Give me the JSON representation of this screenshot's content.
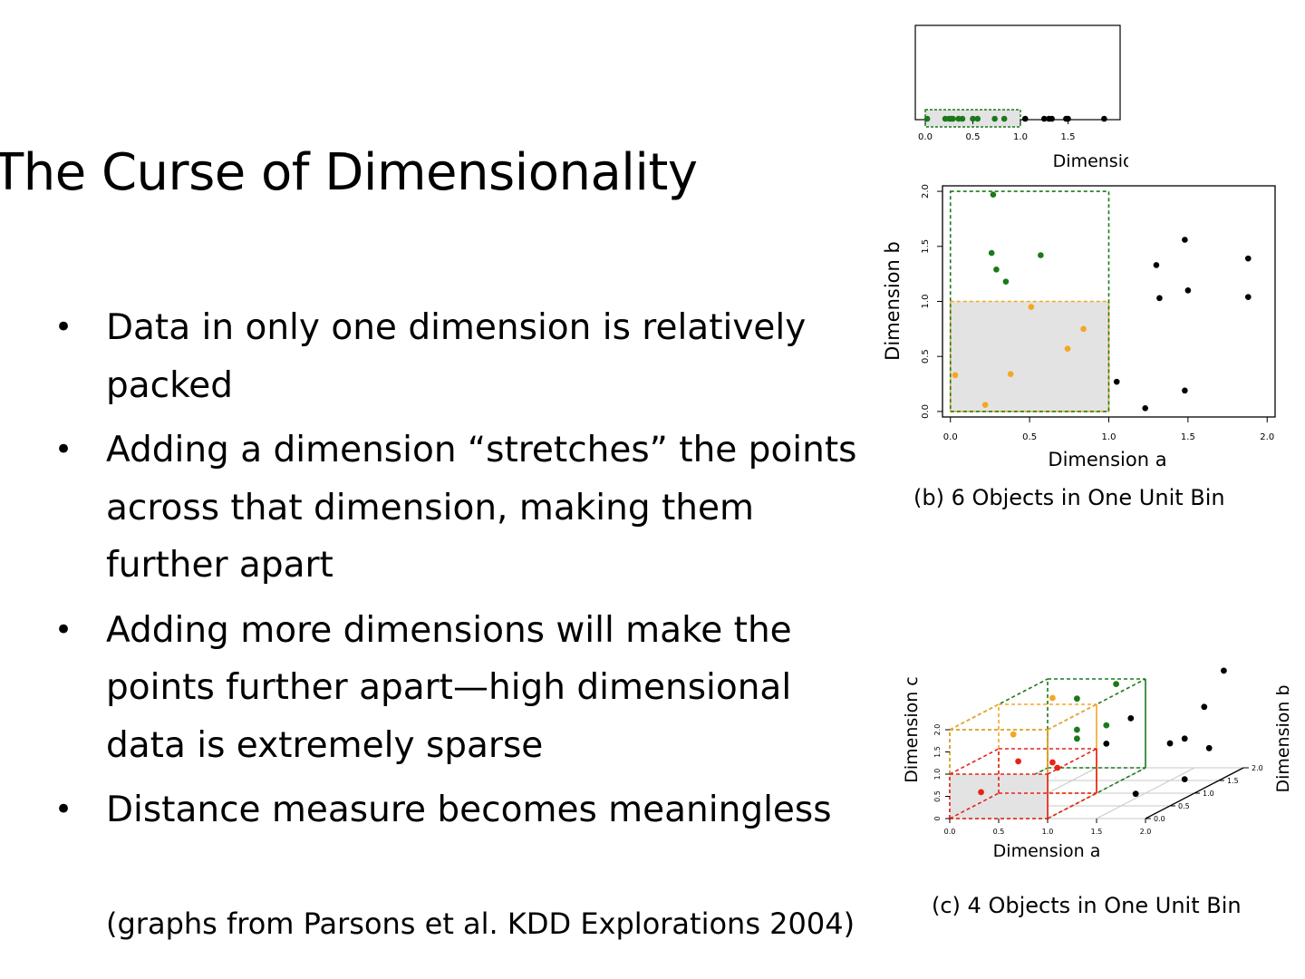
{
  "slide": {
    "title": "The Curse of Dimensionality",
    "bullets": [
      "Data in only one dimension is relatively packed",
      "Adding a dimension “stretches” the  points across that dimension, making them further apart",
      "Adding more dimensions will make the points further apart—high dimensional data is extremely sparse",
      "Distance measure becomes meaningless"
    ],
    "citation": "(graphs from Parsons et al. KDD Explorations 2004)"
  },
  "colors": {
    "in_bin_1d": "#1a7a1a",
    "in_bin_2d": "#f5a623",
    "in_bin_3d": "#e8221b",
    "outside": "#000000",
    "bin_fill": "#e3e3e3"
  },
  "chart_data": [
    {
      "type": "scatter",
      "title": "",
      "xlabel": "Dimension a",
      "xlim": [
        0.0,
        2.0
      ],
      "xticks": [
        "0.0",
        "0.5",
        "1.0",
        "1.5"
      ],
      "bin": {
        "x": [
          0.0,
          1.0
        ],
        "color": "green"
      },
      "points": [
        {
          "x": 0.02,
          "color": "green"
        },
        {
          "x": 0.21,
          "color": "green"
        },
        {
          "x": 0.25,
          "color": "green"
        },
        {
          "x": 0.27,
          "color": "green"
        },
        {
          "x": 0.29,
          "color": "green"
        },
        {
          "x": 0.35,
          "color": "green"
        },
        {
          "x": 0.39,
          "color": "green"
        },
        {
          "x": 0.5,
          "color": "green"
        },
        {
          "x": 0.55,
          "color": "green"
        },
        {
          "x": 0.73,
          "color": "green"
        },
        {
          "x": 0.83,
          "color": "green"
        },
        {
          "x": 1.05,
          "color": "black"
        },
        {
          "x": 1.25,
          "color": "black"
        },
        {
          "x": 1.3,
          "color": "black"
        },
        {
          "x": 1.33,
          "color": "black"
        },
        {
          "x": 1.48,
          "color": "black"
        },
        {
          "x": 1.5,
          "color": "black"
        },
        {
          "x": 1.88,
          "color": "black"
        }
      ]
    },
    {
      "type": "scatter",
      "title": "",
      "caption": "(b) 6 Objects in One Unit Bin",
      "xlabel": "Dimension a",
      "ylabel": "Dimension b",
      "xlim": [
        -0.05,
        2.05
      ],
      "ylim": [
        -0.05,
        2.05
      ],
      "xticks": [
        "0.0",
        "0.5",
        "1.0",
        "1.5",
        "2.0"
      ],
      "yticks": [
        "0.0",
        "0.5",
        "1.0",
        "1.5",
        "2.0"
      ],
      "bins": [
        {
          "x": [
            0.0,
            1.0
          ],
          "y": [
            0.0,
            2.0
          ],
          "color": "green"
        },
        {
          "x": [
            0.0,
            1.0
          ],
          "y": [
            0.0,
            1.0
          ],
          "color": "orange",
          "filled": true
        }
      ],
      "points": [
        {
          "x": 0.27,
          "y": 1.97,
          "color": "green"
        },
        {
          "x": 0.26,
          "y": 1.44,
          "color": "green"
        },
        {
          "x": 0.29,
          "y": 1.29,
          "color": "green"
        },
        {
          "x": 0.35,
          "y": 1.18,
          "color": "green"
        },
        {
          "x": 0.57,
          "y": 1.42,
          "color": "green"
        },
        {
          "x": 0.03,
          "y": 0.33,
          "color": "orange"
        },
        {
          "x": 0.22,
          "y": 0.06,
          "color": "orange"
        },
        {
          "x": 0.38,
          "y": 0.34,
          "color": "orange"
        },
        {
          "x": 0.51,
          "y": 0.95,
          "color": "orange"
        },
        {
          "x": 0.74,
          "y": 0.57,
          "color": "orange"
        },
        {
          "x": 0.84,
          "y": 0.75,
          "color": "orange"
        },
        {
          "x": 1.05,
          "y": 0.27,
          "color": "black"
        },
        {
          "x": 1.23,
          "y": 0.03,
          "color": "black"
        },
        {
          "x": 1.3,
          "y": 1.33,
          "color": "black"
        },
        {
          "x": 1.32,
          "y": 1.03,
          "color": "black"
        },
        {
          "x": 1.48,
          "y": 1.56,
          "color": "black"
        },
        {
          "x": 1.5,
          "y": 1.1,
          "color": "black"
        },
        {
          "x": 1.48,
          "y": 0.19,
          "color": "black"
        },
        {
          "x": 1.88,
          "y": 1.39,
          "color": "black"
        },
        {
          "x": 1.88,
          "y": 1.04,
          "color": "black"
        }
      ]
    },
    {
      "type": "scatter",
      "title": "",
      "caption": "(c) 4 Objects in One Unit Bin",
      "xlabel": "Dimension a",
      "ylabel": "Dimension c",
      "zlabel": "Dimension b",
      "xticks": [
        "0.0",
        "0.5",
        "1.0",
        "1.5",
        "2.0"
      ],
      "yticks": [
        "0",
        "0.5",
        "1.0",
        "1.5",
        "2.0"
      ],
      "zticks": [
        "0.0",
        "0.5",
        "1.0",
        "1.5",
        "2.0"
      ],
      "bins": [
        {
          "a": [
            0,
            1
          ],
          "b": [
            0,
            2
          ],
          "c": [
            0,
            2
          ],
          "color": "green"
        },
        {
          "a": [
            0,
            1
          ],
          "b": [
            0,
            1
          ],
          "c": [
            0,
            2
          ],
          "color": "orange"
        },
        {
          "a": [
            0,
            1
          ],
          "b": [
            0,
            1
          ],
          "c": [
            0,
            1
          ],
          "color": "red",
          "filled": true
        }
      ],
      "points": [
        {
          "a": 0.22,
          "b": 0.2,
          "c": 0.48,
          "color": "red"
        },
        {
          "a": 0.5,
          "b": 0.4,
          "c": 1.06,
          "color": "red"
        },
        {
          "a": 0.8,
          "b": 0.6,
          "c": 0.8,
          "color": "red"
        },
        {
          "a": 0.6,
          "b": 0.9,
          "c": 0.75,
          "color": "red"
        },
        {
          "a": 0.2,
          "b": 0.9,
          "c": 1.38,
          "color": "orange"
        },
        {
          "a": 0.6,
          "b": 0.9,
          "c": 2.2,
          "color": "orange"
        },
        {
          "a": 0.6,
          "b": 1.4,
          "c": 1.9,
          "color": "green"
        },
        {
          "a": 0.6,
          "b": 1.4,
          "c": 1.2,
          "color": "green"
        },
        {
          "a": 0.6,
          "b": 1.4,
          "c": 1.0,
          "color": "green"
        },
        {
          "a": 0.9,
          "b": 1.4,
          "c": 1.3,
          "color": "green"
        },
        {
          "a": 0.8,
          "b": 1.8,
          "c": 2.0,
          "color": "green"
        },
        {
          "a": 1.1,
          "b": 1.5,
          "c": 1.4,
          "color": "black"
        },
        {
          "a": 1.0,
          "b": 1.2,
          "c": 1.0,
          "color": "black"
        },
        {
          "a": 1.6,
          "b": 1.3,
          "c": 0.95,
          "color": "black"
        },
        {
          "a": 1.8,
          "b": 1.6,
          "c": 1.6,
          "color": "black"
        },
        {
          "a": 1.9,
          "b": 1.8,
          "c": 2.3,
          "color": "black"
        },
        {
          "a": 1.7,
          "b": 1.9,
          "c": 0.5,
          "color": "black"
        },
        {
          "a": 1.8,
          "b": 1.2,
          "c": 0.2,
          "color": "black"
        },
        {
          "a": 1.5,
          "b": 0.8,
          "c": 0.1,
          "color": "black"
        },
        {
          "a": 1.7,
          "b": 1.4,
          "c": 1.0,
          "color": "black"
        }
      ]
    }
  ]
}
